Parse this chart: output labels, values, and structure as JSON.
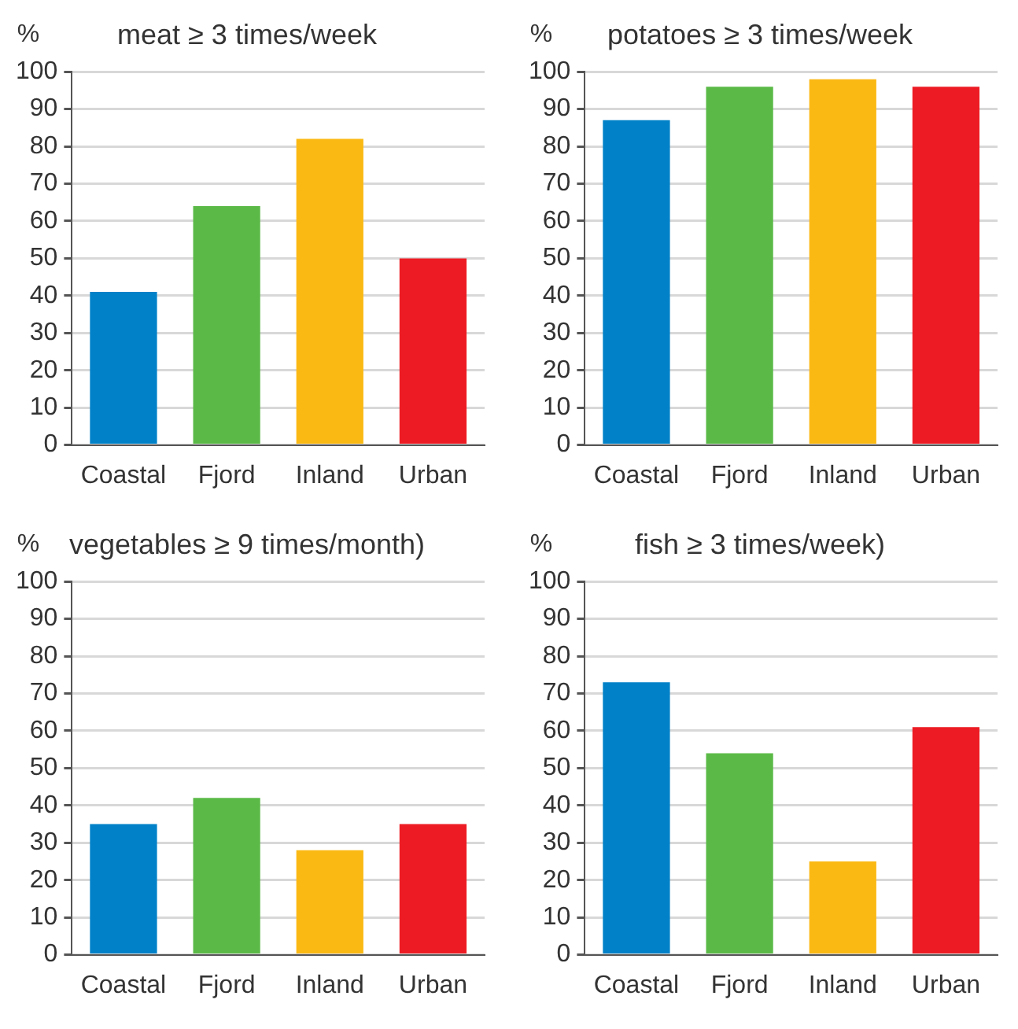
{
  "chart_data": [
    {
      "type": "bar",
      "title": "meat ≥ 3 times/week",
      "ylabel": "%",
      "categories": [
        "Coastal",
        "Fjord",
        "Inland",
        "Urban"
      ],
      "colors": [
        "#0081c8",
        "#5bba47",
        "#fbb914",
        "#ed1c24"
      ],
      "values": [
        41,
        64,
        82,
        50
      ],
      "ylim": [
        0,
        100
      ],
      "yticks": [
        0,
        10,
        20,
        30,
        40,
        50,
        60,
        70,
        80,
        90,
        100
      ],
      "grid": "y"
    },
    {
      "type": "bar",
      "title": "potatoes ≥ 3 times/week",
      "ylabel": "%",
      "categories": [
        "Coastal",
        "Fjord",
        "Inland",
        "Urban"
      ],
      "colors": [
        "#0081c8",
        "#5bba47",
        "#fbb914",
        "#ed1c24"
      ],
      "values": [
        87,
        96,
        98,
        96
      ],
      "ylim": [
        0,
        100
      ],
      "yticks": [
        0,
        10,
        20,
        30,
        40,
        50,
        60,
        70,
        80,
        90,
        100
      ],
      "grid": "y"
    },
    {
      "type": "bar",
      "title": "vegetables ≥ 9 times/month)",
      "ylabel": "%",
      "categories": [
        "Coastal",
        "Fjord",
        "Inland",
        "Urban"
      ],
      "colors": [
        "#0081c8",
        "#5bba47",
        "#fbb914",
        "#ed1c24"
      ],
      "values": [
        35,
        42,
        28,
        35
      ],
      "ylim": [
        0,
        100
      ],
      "yticks": [
        0,
        10,
        20,
        30,
        40,
        50,
        60,
        70,
        80,
        90,
        100
      ],
      "grid": "y"
    },
    {
      "type": "bar",
      "title": "fish ≥ 3 times/week)",
      "ylabel": "%",
      "categories": [
        "Coastal",
        "Fjord",
        "Inland",
        "Urban"
      ],
      "colors": [
        "#0081c8",
        "#5bba47",
        "#fbb914",
        "#ed1c24"
      ],
      "values": [
        73,
        54,
        25,
        61
      ],
      "ylim": [
        0,
        100
      ],
      "yticks": [
        0,
        10,
        20,
        30,
        40,
        50,
        60,
        70,
        80,
        90,
        100
      ],
      "grid": "y"
    }
  ]
}
